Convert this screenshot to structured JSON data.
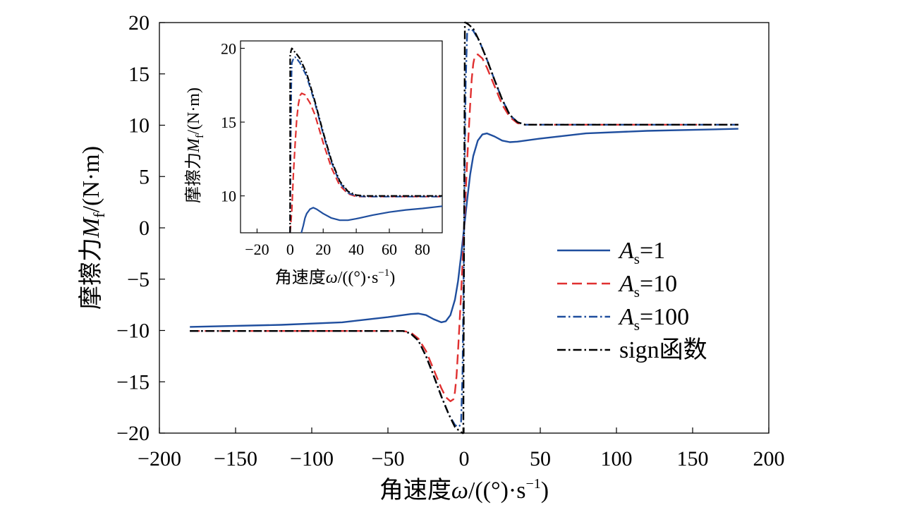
{
  "chart_data": [
    {
      "type": "line",
      "title": "",
      "xlabel": "角速度ω/((°)·s⁻¹)",
      "ylabel": "摩擦力M_f/(N·m)",
      "xlim": [
        -200,
        200
      ],
      "ylim": [
        -20,
        20
      ],
      "xticks": [
        "−200",
        "−150",
        "−100",
        "−50",
        "0",
        "50",
        "100",
        "150",
        "200"
      ],
      "yticks": [
        "−20",
        "−15",
        "−10",
        "−5",
        "0",
        "5",
        "10",
        "15",
        "20"
      ],
      "grid": false,
      "legend_position": "lower-right",
      "series": [
        {
          "name": "As=1",
          "label_main": "A",
          "label_sub": "s",
          "label_rest": "=1",
          "color": "#1f4e9e",
          "dash": "solid",
          "x": [
            -180,
            -120,
            -80,
            -50,
            -35,
            -30,
            -25,
            -20,
            -15,
            -12,
            -9,
            -6,
            -4,
            -2,
            0,
            2,
            4,
            6,
            9,
            12,
            15,
            20,
            25,
            30,
            35,
            50,
            80,
            120,
            180
          ],
          "y": [
            -9.65,
            -9.45,
            -9.2,
            -8.7,
            -8.4,
            -8.35,
            -8.5,
            -8.9,
            -9.2,
            -9.1,
            -8.5,
            -7.0,
            -5.2,
            -2.7,
            0,
            2.7,
            5.2,
            7.0,
            8.5,
            9.1,
            9.2,
            8.9,
            8.5,
            8.35,
            8.4,
            8.7,
            9.2,
            9.45,
            9.65
          ]
        },
        {
          "name": "As=10",
          "label_main": "A",
          "label_sub": "s",
          "label_rest": "=10",
          "color": "#e03030",
          "dash": "dashed",
          "x": [
            -180,
            -40,
            -35,
            -30,
            -25,
            -20,
            -15,
            -12,
            -9,
            -7,
            -6,
            -5,
            -4,
            -2,
            -1,
            0,
            1,
            2,
            4,
            5,
            6,
            7,
            9,
            12,
            15,
            20,
            25,
            30,
            35,
            40,
            180
          ],
          "y": [
            -10.05,
            -10.05,
            -10.2,
            -10.8,
            -12.0,
            -13.8,
            -15.6,
            -16.5,
            -16.9,
            -16.7,
            -16.0,
            -14.5,
            -12.0,
            -6.5,
            -3.3,
            0,
            3.3,
            6.5,
            12.0,
            14.5,
            16.0,
            16.7,
            16.9,
            16.5,
            15.6,
            13.8,
            12.0,
            10.8,
            10.2,
            10.05,
            10.05
          ]
        },
        {
          "name": "As=100",
          "label_main": "A",
          "label_sub": "s",
          "label_rest": "=100",
          "color": "#1f4e9e",
          "dash": "dashdot",
          "x": [
            -180,
            -40,
            -35,
            -30,
            -25,
            -20,
            -15,
            -10,
            -6,
            -4,
            -3,
            -2,
            -1,
            -0.5,
            0,
            0.5,
            1,
            2,
            3,
            4,
            6,
            10,
            15,
            20,
            25,
            30,
            35,
            40,
            180
          ],
          "y": [
            -10.05,
            -10.05,
            -10.3,
            -11.0,
            -12.5,
            -14.4,
            -16.4,
            -18.2,
            -19.2,
            -19.4,
            -19.3,
            -19.0,
            -14.0,
            -7.5,
            0,
            7.5,
            14.0,
            19.0,
            19.3,
            19.4,
            19.2,
            18.2,
            16.4,
            14.4,
            12.5,
            11.0,
            10.3,
            10.05,
            10.05
          ]
        },
        {
          "name": "sign函数",
          "label_main": "sign函数",
          "label_sub": "",
          "label_rest": "",
          "color": "#000000",
          "dash": "dashdot",
          "x": [
            -180,
            -40,
            -35,
            -30,
            -25,
            -20,
            -15,
            -10,
            -6,
            -3,
            -1,
            -0.5,
            0,
            0.5,
            1,
            3,
            6,
            10,
            15,
            20,
            25,
            30,
            35,
            40,
            180
          ],
          "y": [
            -10.05,
            -10.05,
            -10.3,
            -11.0,
            -12.5,
            -14.4,
            -16.4,
            -18.2,
            -19.4,
            -19.8,
            -20.0,
            -20.0,
            0,
            20.0,
            20.0,
            19.8,
            19.4,
            18.2,
            16.4,
            14.4,
            12.5,
            11.0,
            10.3,
            10.05,
            10.05
          ]
        }
      ]
    },
    {
      "type": "line",
      "title": "",
      "xlabel": "角速度ω/((°)·s⁻¹)",
      "ylabel": "摩擦力M_f/(N·m)",
      "xlim": [
        -30,
        92
      ],
      "ylim": [
        7.5,
        20.5
      ],
      "xticks": [
        "−20",
        "0",
        "20",
        "40",
        "60",
        "80"
      ],
      "yticks": [
        "10",
        "15",
        "20"
      ],
      "grid": false,
      "series": [
        {
          "name": "As=1",
          "color": "#1f4e9e",
          "dash": "solid",
          "x": [
            6.8,
            8,
            9,
            10,
            12,
            14,
            16,
            20,
            25,
            30,
            35,
            40,
            50,
            60,
            70,
            80,
            92
          ],
          "y": [
            7.5,
            8.0,
            8.5,
            8.8,
            9.1,
            9.2,
            9.1,
            8.8,
            8.5,
            8.35,
            8.35,
            8.45,
            8.7,
            8.9,
            9.05,
            9.15,
            9.3
          ]
        },
        {
          "name": "As=10",
          "color": "#e03030",
          "dash": "dashed",
          "x": [
            0,
            1,
            2,
            3,
            4,
            5,
            6,
            7,
            9,
            12,
            15,
            20,
            25,
            30,
            35,
            40,
            45,
            92
          ],
          "y": [
            7.5,
            9.0,
            11.5,
            13.5,
            15.2,
            16.2,
            16.8,
            16.95,
            16.85,
            16.3,
            15.5,
            13.6,
            11.9,
            10.7,
            10.15,
            9.95,
            9.95,
            9.95
          ]
        },
        {
          "name": "As=100",
          "color": "#1f4e9e",
          "dash": "dashdot",
          "x": [
            0,
            0.3,
            0.7,
            1,
            2,
            3,
            4,
            6,
            10,
            15,
            20,
            25,
            30,
            35,
            40,
            45,
            92
          ],
          "y": [
            7.5,
            13.0,
            17.5,
            19.0,
            19.3,
            19.4,
            19.3,
            19.0,
            18.1,
            16.3,
            14.2,
            12.3,
            10.9,
            10.2,
            10.0,
            9.95,
            9.95
          ]
        },
        {
          "name": "sign函数",
          "color": "#000000",
          "dash": "dashdot",
          "x": [
            0,
            0.01,
            0.5,
            1,
            2,
            3,
            4,
            6,
            10,
            15,
            20,
            25,
            30,
            35,
            40,
            45,
            92
          ],
          "y": [
            7.5,
            19.5,
            19.8,
            20.0,
            19.9,
            19.7,
            19.6,
            19.3,
            18.3,
            16.4,
            14.3,
            12.4,
            11.0,
            10.3,
            10.05,
            10.0,
            10.0
          ]
        }
      ]
    }
  ],
  "labels": {
    "main_ylabel_cn": "摩擦力",
    "main_ylabel_sym": "M",
    "main_ylabel_sub": "f",
    "main_ylabel_unit": "/(N·m)",
    "main_xlabel_cn": "角速度",
    "main_xlabel_sym": "ω",
    "main_xlabel_unit": "/((°)·s",
    "main_xlabel_sup": "−1",
    "main_xlabel_close": ")",
    "inset_ylabel_cn": "摩擦力",
    "inset_ylabel_sym": "M",
    "inset_ylabel_sub": "f",
    "inset_ylabel_unit": "/(N·m)",
    "inset_xlabel_cn": "角速度",
    "inset_xlabel_sym": "ω",
    "inset_xlabel_unit": "/((°)·s",
    "inset_xlabel_sup": "−1",
    "inset_xlabel_close": ")"
  }
}
